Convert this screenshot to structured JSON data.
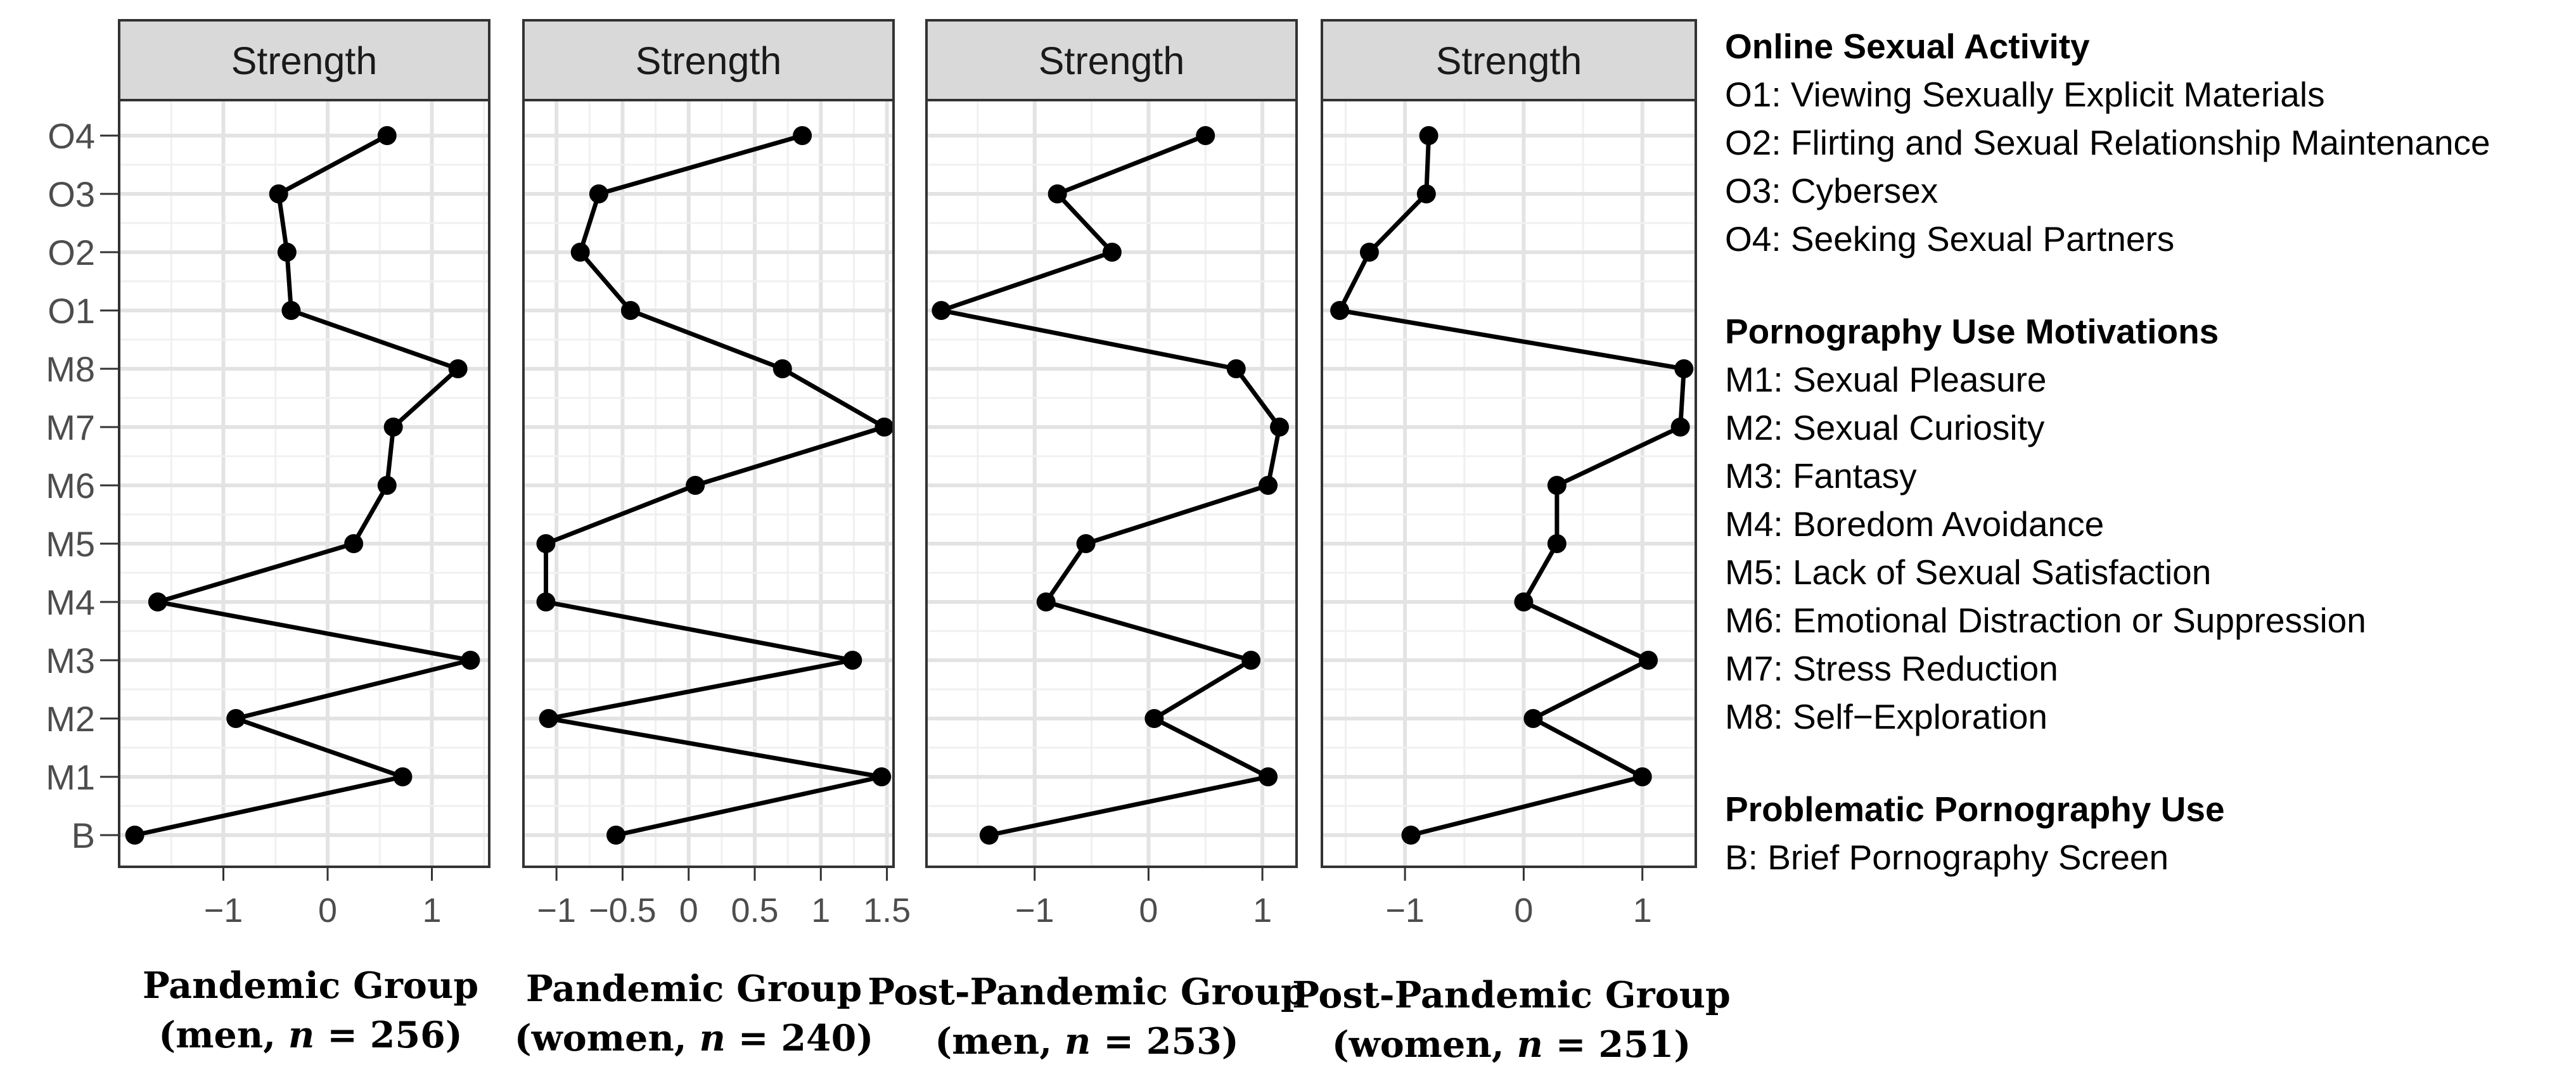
{
  "chart_data": {
    "type": "line",
    "strip_label": "Strength",
    "y_labels": [
      "B",
      "M1",
      "M2",
      "M3",
      "M4",
      "M5",
      "M6",
      "M7",
      "M8",
      "O1",
      "O2",
      "O3",
      "O4"
    ],
    "panels": [
      {
        "caption_line1": "Pandemic Group",
        "caption_prefix": "(men, ",
        "caption_n": "n",
        "caption_suffix": " = 256)",
        "xlim": [
          -2.0,
          1.55
        ],
        "xticks": [
          -1,
          0,
          1
        ],
        "xtick_labels": [
          "−1",
          "0",
          "1"
        ],
        "values": [
          -1.85,
          0.72,
          -0.88,
          1.37,
          -1.63,
          0.25,
          0.57,
          0.63,
          1.25,
          -0.35,
          -0.39,
          -0.47,
          0.57
        ]
      },
      {
        "caption_line1": "Pandemic Group",
        "caption_prefix": "(women, ",
        "caption_n": "n",
        "caption_suffix": " = 240)",
        "xlim": [
          -1.25,
          1.55
        ],
        "xticks": [
          -1,
          -0.5,
          0,
          0.5,
          1,
          1.5
        ],
        "xtick_labels": [
          "−1",
          "−0.5",
          "0",
          "0.5",
          "1",
          "1.5"
        ],
        "values": [
          -0.55,
          1.46,
          -1.06,
          1.24,
          -1.08,
          -1.08,
          0.05,
          1.48,
          0.71,
          -0.44,
          -0.82,
          -0.68,
          0.86
        ]
      },
      {
        "caption_line1": "Post-Pandemic Group",
        "caption_prefix": "(men, ",
        "caption_n": "n",
        "caption_suffix": " = 253)",
        "xlim": [
          -1.95,
          1.3
        ],
        "xticks": [
          -1,
          0,
          1
        ],
        "xtick_labels": [
          "−1",
          "0",
          "1"
        ],
        "values": [
          -1.4,
          1.05,
          0.05,
          0.9,
          -0.9,
          -0.55,
          1.05,
          1.15,
          0.77,
          -1.82,
          -0.32,
          -0.8,
          0.5
        ]
      },
      {
        "caption_line1": "Post-Pandemic Group",
        "caption_prefix": "(women, ",
        "caption_n": "n",
        "caption_suffix": " = 251)",
        "xlim": [
          -1.7,
          1.45
        ],
        "xticks": [
          -1,
          0,
          1
        ],
        "xtick_labels": [
          "−1",
          "0",
          "1"
        ],
        "values": [
          -0.95,
          1.0,
          0.08,
          1.05,
          0.0,
          0.28,
          0.28,
          1.32,
          1.35,
          -1.55,
          -1.3,
          -0.82,
          -0.8
        ]
      }
    ],
    "legend": [
      {
        "heading": "Online Sexual Activity",
        "items": [
          "O1: Viewing Sexually Explicit Materials",
          "O2: Flirting and Sexual Relationship Maintenance",
          "O3: Cybersex",
          "O4: Seeking Sexual Partners"
        ]
      },
      {
        "heading": "Pornography Use Motivations",
        "items": [
          "M1: Sexual Pleasure",
          "M2: Sexual Curiosity",
          "M3: Fantasy",
          "M4: Boredom Avoidance",
          "M5: Lack of Sexual Satisfaction",
          "M6: Emotional Distraction or Suppression",
          "M7: Stress Reduction",
          "M8: Self−Exploration"
        ]
      },
      {
        "heading": "Problematic Pornography Use",
        "items": [
          "B: Brief Pornography Screen"
        ]
      }
    ]
  }
}
